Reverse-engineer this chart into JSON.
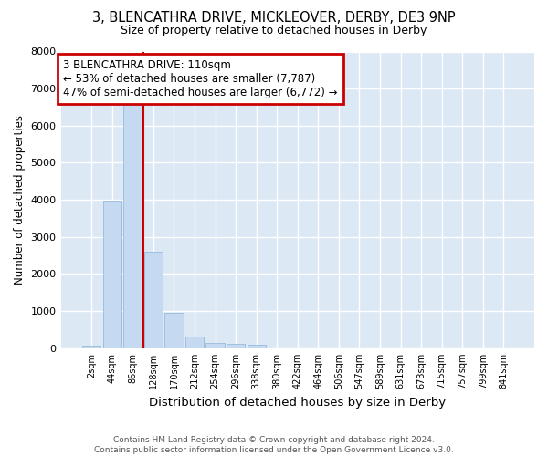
{
  "title": "3, BLENCATHRA DRIVE, MICKLEOVER, DERBY, DE3 9NP",
  "subtitle": "Size of property relative to detached houses in Derby",
  "xlabel": "Distribution of detached houses by size in Derby",
  "ylabel": "Number of detached properties",
  "footer_line1": "Contains HM Land Registry data © Crown copyright and database right 2024.",
  "footer_line2": "Contains public sector information licensed under the Open Government Licence v3.0.",
  "bin_labels": [
    "2sqm",
    "44sqm",
    "86sqm",
    "128sqm",
    "170sqm",
    "212sqm",
    "254sqm",
    "296sqm",
    "338sqm",
    "380sqm",
    "422sqm",
    "464sqm",
    "506sqm",
    "547sqm",
    "589sqm",
    "631sqm",
    "673sqm",
    "715sqm",
    "757sqm",
    "799sqm",
    "841sqm"
  ],
  "bar_values": [
    80,
    3980,
    6600,
    2600,
    950,
    320,
    140,
    125,
    100,
    0,
    0,
    0,
    0,
    0,
    0,
    0,
    0,
    0,
    0,
    0,
    0
  ],
  "bar_color": "#c5d9f0",
  "bar_edge_color": "#8ab4d8",
  "bg_color": "#dde8f5",
  "grid_color": "#ffffff",
  "vline_x": 2.5,
  "vline_color": "#cc0000",
  "annotation_text": "3 BLENCATHRA DRIVE: 110sqm\n← 53% of detached houses are smaller (7,787)\n47% of semi-detached houses are larger (6,772) →",
  "annotation_box_color": "#cc0000",
  "ylim": [
    0,
    8000
  ],
  "yticks": [
    0,
    1000,
    2000,
    3000,
    4000,
    5000,
    6000,
    7000,
    8000
  ]
}
